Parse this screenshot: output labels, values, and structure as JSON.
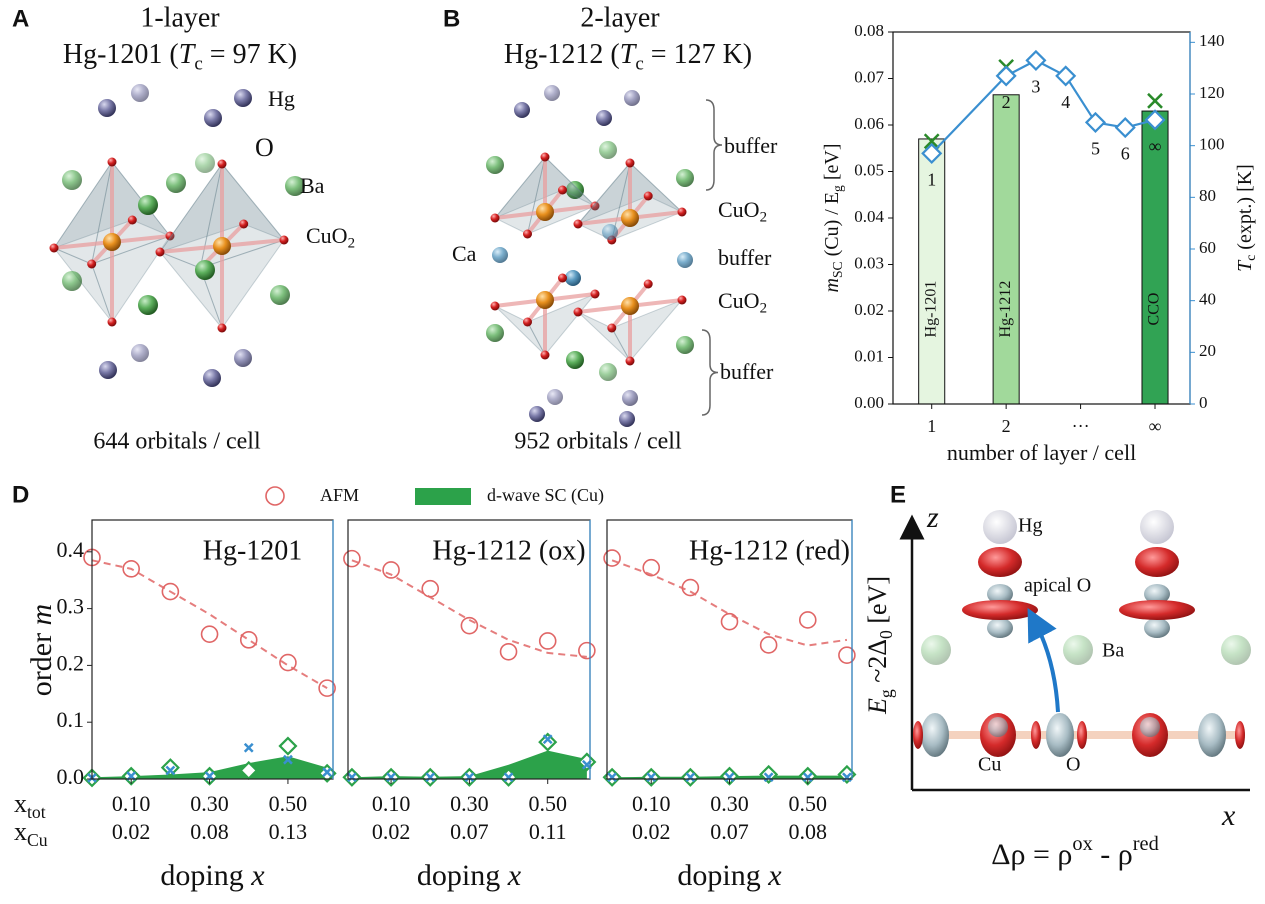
{
  "panels": {
    "A": {
      "label": "A",
      "title_line1": "1-layer",
      "title_line2": [
        {
          "text": "Hg-1201 ("
        },
        {
          "text": "T",
          "style": "italic"
        },
        {
          "text": "c",
          "style": "sub"
        },
        {
          "text": " = 97 K)"
        }
      ],
      "atoms": {
        "hg": "Hg",
        "o": "O",
        "ba": "Ba",
        "cuo2": [
          {
            "text": "CuO"
          },
          {
            "text": "2",
            "style": "sub"
          }
        ]
      },
      "footer": "644 orbitals / cell"
    },
    "B": {
      "label": "B",
      "title_line1": "2-layer",
      "title_line2": [
        {
          "text": "Hg-1212 ("
        },
        {
          "text": "T",
          "style": "italic"
        },
        {
          "text": "c",
          "style": "sub"
        },
        {
          "text": " = 127 K)"
        }
      ],
      "labels": {
        "buffer_top": "buffer",
        "cuo2_top": [
          {
            "text": "CuO"
          },
          {
            "text": "2",
            "style": "sub"
          }
        ],
        "ca": "Ca",
        "buffer_mid": "buffer",
        "cuo2_bottom": [
          {
            "text": "CuO"
          },
          {
            "text": "2",
            "style": "sub"
          }
        ],
        "buffer_bottom": "buffer"
      },
      "footer": "952 orbitals / cell"
    },
    "D": {
      "label": "D"
    },
    "E": {
      "label": "E",
      "axis_z": "z",
      "axis_x": "x",
      "hg": "Hg",
      "apical_o": "apical O",
      "ba": "Ba",
      "cu": "Cu",
      "o": "O",
      "equation": [
        {
          "text": "Δρ = ρ"
        },
        {
          "text": "ox",
          "style": "sup"
        },
        {
          "text": " - ρ"
        },
        {
          "text": "red",
          "style": "sup"
        }
      ]
    }
  },
  "chart_data": [
    {
      "type": "bar",
      "xlabel": "number of layer / cell",
      "ylabel": [
        {
          "text": "m",
          "style": "italic"
        },
        {
          "text": "SC",
          "style": "sub"
        },
        {
          "text": " (Cu)  /  E"
        },
        {
          "text": "g",
          "style": "sub"
        },
        {
          "text": " [eV]"
        }
      ],
      "y2label": [
        {
          "text": "T",
          "style": "italic"
        },
        {
          "text": "c",
          "style": "sub"
        },
        {
          "text": " (expt.) [K]"
        }
      ],
      "xlim": [
        0.48,
        4.47
      ],
      "xticks": [
        1,
        2,
        {
          "value": 3,
          "label": "···"
        },
        {
          "value": 4,
          "label": "∞"
        }
      ],
      "ylim": [
        0,
        0.08
      ],
      "yticks": [
        {
          "value": 0,
          "label": "0.00"
        },
        {
          "value": 0.01,
          "label": "0.01"
        },
        {
          "value": 0.02,
          "label": "0.02"
        },
        {
          "value": 0.03,
          "label": "0.03"
        },
        {
          "value": 0.04,
          "label": "0.04"
        },
        {
          "value": 0.05,
          "label": "0.05"
        },
        {
          "value": 0.06,
          "label": "0.06"
        },
        {
          "value": 0.07,
          "label": "0.07"
        },
        {
          "value": 0.08,
          "label": "0.08"
        }
      ],
      "y2lim": [
        0,
        144
      ],
      "y2ticks": [
        0,
        20,
        40,
        60,
        80,
        100,
        120,
        140
      ],
      "axis_colors": {
        "y": "#2ca24a",
        "y2": "#3a8fd0"
      },
      "series": [
        {
          "type": "bar",
          "x": [
            1,
            2,
            4
          ],
          "values": [
            0.057,
            0.0665,
            0.063
          ],
          "bar_labels": [
            "Hg-1201",
            "Hg-1212",
            "CCO"
          ],
          "colors": [
            "#e5f5e0",
            "#a1d99b",
            "#31a354"
          ]
        },
        {
          "type": "scatter",
          "marker": "x",
          "color": "#2a8a2a",
          "x": [
            1,
            2,
            4
          ],
          "values": [
            0.0565,
            0.0725,
            0.0652
          ]
        },
        {
          "type": "line",
          "axis": "y2",
          "marker": "diamond",
          "color": "#3a8fd0",
          "x": [
            1,
            2,
            2.4,
            2.8,
            3.2,
            3.6,
            4
          ],
          "values": [
            97,
            127,
            133,
            127,
            109,
            107,
            110
          ],
          "point_labels": [
            "1",
            "2",
            "3",
            "4",
            "5",
            "6",
            "∞"
          ]
        }
      ]
    },
    {
      "type": "line",
      "title": "Hg-1201",
      "ylabel": [
        {
          "text": "order "
        },
        {
          "text": "m",
          "style": "italic"
        }
      ],
      "xtick_rows": [
        [
          {
            "text": "x"
          },
          {
            "text": "tot",
            "style": "sub"
          }
        ],
        [
          {
            "text": "x"
          },
          {
            "text": "Cu",
            "style": "sub"
          }
        ]
      ],
      "xlim": [
        0,
        0.615
      ],
      "ylim": [
        0,
        0.456
      ],
      "yticks": [
        {
          "value": 0,
          "label": "0.0"
        },
        {
          "value": 0.1,
          "label": "0.1"
        },
        {
          "value": 0.2,
          "label": "0.2"
        },
        {
          "value": 0.3,
          "label": "0.3"
        },
        {
          "value": 0.4,
          "label": "0.4"
        }
      ],
      "xticks": [
        {
          "value": 0.1,
          "label": "0.10"
        },
        {
          "value": 0.3,
          "label": "0.30"
        },
        {
          "value": 0.5,
          "label": "0.50"
        }
      ],
      "xticks_cu": [
        "0.02",
        "0.08",
        "0.13"
      ],
      "xlabel": [
        {
          "text": "doping "
        },
        {
          "text": "x",
          "style": "italic"
        }
      ],
      "x": [
        0,
        0.1,
        0.2,
        0.3,
        0.4,
        0.5,
        0.6
      ],
      "series": [
        {
          "name": "AFM",
          "color": "#e06666",
          "style": "circle",
          "values": [
            0.39,
            0.37,
            0.33,
            0.255,
            0.245,
            0.205,
            0.16
          ]
        },
        {
          "color": "#e06666",
          "style": "dashed",
          "values": [
            0.385,
            0.37,
            0.33,
            0.29,
            0.245,
            0.2,
            0.16
          ]
        },
        {
          "name": "d-wave SC (Cu)",
          "color": "#2ca24a",
          "style": "area",
          "values": [
            0.003,
            0.005,
            0.008,
            0.012,
            0.028,
            0.04,
            0.02
          ]
        },
        {
          "color": "#2ca24a",
          "style": "diamond",
          "values": [
            0.002,
            0.005,
            0.02,
            0.005,
            0.015,
            0.058,
            0.01
          ]
        },
        {
          "color": "#3a8fd0",
          "style": "x",
          "values": [
            0.002,
            0.005,
            0.015,
            0.005,
            0.055,
            0.034,
            0.012
          ]
        }
      ]
    },
    {
      "type": "line",
      "title": "Hg-1212 (ox)",
      "xlim": [
        -0.01,
        0.608
      ],
      "ylim": [
        0,
        0.456
      ],
      "xticks": [
        {
          "value": 0.1,
          "label": "0.10"
        },
        {
          "value": 0.3,
          "label": "0.30"
        },
        {
          "value": 0.5,
          "label": "0.50"
        }
      ],
      "xticks_cu": [
        "0.02",
        "0.07",
        "0.11"
      ],
      "xlabel": [
        {
          "text": "doping "
        },
        {
          "text": "x",
          "style": "italic"
        }
      ],
      "x": [
        0,
        0.1,
        0.2,
        0.3,
        0.4,
        0.5,
        0.6
      ],
      "series": [
        {
          "color": "#e06666",
          "style": "circle",
          "values": [
            0.388,
            0.368,
            0.335,
            0.27,
            0.224,
            0.243,
            0.226
          ]
        },
        {
          "color": "#e06666",
          "style": "dashed",
          "values": [
            0.385,
            0.36,
            0.32,
            0.28,
            0.245,
            0.222,
            0.215
          ]
        },
        {
          "color": "#2ca24a",
          "style": "area",
          "values": [
            0.003,
            0.005,
            0.004,
            0.005,
            0.025,
            0.05,
            0.035
          ]
        },
        {
          "color": "#2ca24a",
          "style": "diamond",
          "values": [
            0.003,
            0.003,
            0.003,
            0.003,
            0.003,
            0.065,
            0.03
          ]
        },
        {
          "color": "#3a8fd0",
          "style": "x",
          "values": [
            0.003,
            0.003,
            0.003,
            0.003,
            0.003,
            0.07,
            0.025
          ]
        }
      ]
    },
    {
      "type": "line",
      "title": "Hg-1212 (red)",
      "y2label": [
        {
          "text": "E",
          "style": "italic"
        },
        {
          "text": "g",
          "style": "sub"
        },
        {
          "text": " ~2Δ"
        },
        {
          "text": "0",
          "style": "sub"
        },
        {
          "text": " [eV]"
        }
      ],
      "xlim": [
        -0.013,
        0.613
      ],
      "ylim": [
        0,
        0.456
      ],
      "xticks": [
        {
          "value": 0.1,
          "label": "0.10"
        },
        {
          "value": 0.3,
          "label": "0.30"
        },
        {
          "value": 0.5,
          "label": "0.50"
        }
      ],
      "xticks_cu": [
        "0.02",
        "0.07",
        "0.08"
      ],
      "xlabel": [
        {
          "text": "doping "
        },
        {
          "text": "x",
          "style": "italic"
        }
      ],
      "x": [
        0,
        0.1,
        0.2,
        0.3,
        0.4,
        0.5,
        0.6
      ],
      "series": [
        {
          "color": "#e06666",
          "style": "circle",
          "values": [
            0.389,
            0.372,
            0.337,
            0.277,
            0.236,
            0.28,
            0.218
          ]
        },
        {
          "color": "#e06666",
          "style": "dashed",
          "values": [
            0.385,
            0.36,
            0.33,
            0.29,
            0.255,
            0.235,
            0.245
          ]
        },
        {
          "color": "#2ca24a",
          "style": "area",
          "values": [
            0.003,
            0.004,
            0.004,
            0.005,
            0.006,
            0.006,
            0.006
          ]
        },
        {
          "color": "#2ca24a",
          "style": "diamond",
          "values": [
            0.003,
            0.003,
            0.003,
            0.005,
            0.008,
            0.005,
            0.008
          ]
        },
        {
          "color": "#3a8fd0",
          "style": "x",
          "values": [
            0.003,
            0.003,
            0.003,
            0.003,
            0.003,
            0.003,
            0.003
          ]
        }
      ]
    }
  ]
}
